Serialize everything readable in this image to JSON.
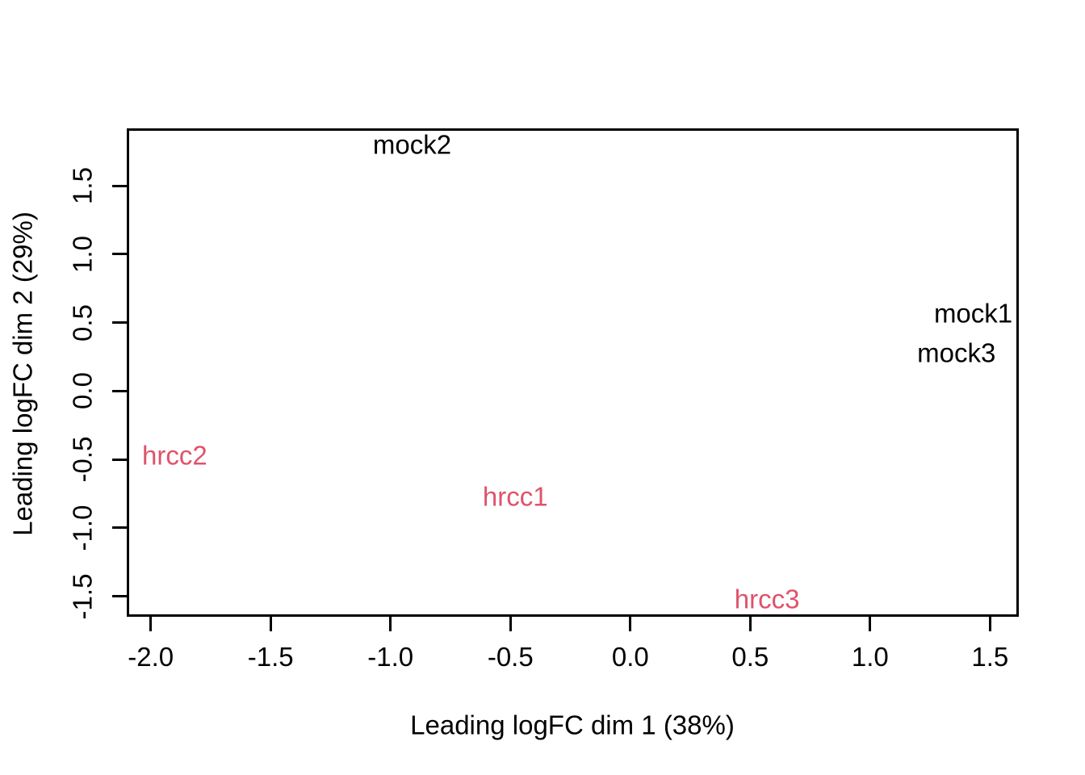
{
  "chart_data": {
    "type": "scatter",
    "subtype": "mds-text-label-plot",
    "title": "",
    "xlabel": "Leading logFC dim 1 (38%)",
    "ylabel": "Leading logFC dim 2 (29%)",
    "xlim": [
      -2.1,
      1.62
    ],
    "ylim": [
      -1.65,
      1.92
    ],
    "grid": false,
    "legend": "none",
    "x_ticks": [
      {
        "value": -2.0,
        "label": "-2.0"
      },
      {
        "value": -1.5,
        "label": "-1.5"
      },
      {
        "value": -1.0,
        "label": "-1.0"
      },
      {
        "value": -0.5,
        "label": "-0.5"
      },
      {
        "value": 0.0,
        "label": "0.0"
      },
      {
        "value": 0.5,
        "label": "0.5"
      },
      {
        "value": 1.0,
        "label": "1.0"
      },
      {
        "value": 1.5,
        "label": "1.5"
      }
    ],
    "y_ticks": [
      {
        "value": -1.5,
        "label": "-1.5"
      },
      {
        "value": -1.0,
        "label": "-1.0"
      },
      {
        "value": -0.5,
        "label": "-0.5"
      },
      {
        "value": 0.0,
        "label": "0.0"
      },
      {
        "value": 0.5,
        "label": "0.5"
      },
      {
        "value": 1.0,
        "label": "1.0"
      },
      {
        "value": 1.5,
        "label": "1.5"
      }
    ],
    "series": [
      {
        "name": "mock",
        "color": "#000000",
        "marker": "text",
        "points": [
          {
            "label": "mock1",
            "x": 1.43,
            "y": 0.57
          },
          {
            "label": "mock2",
            "x": -0.91,
            "y": 1.8
          },
          {
            "label": "mock3",
            "x": 1.36,
            "y": 0.28
          }
        ]
      },
      {
        "name": "hrcc",
        "color": "#DF536B",
        "marker": "text",
        "points": [
          {
            "label": "hrcc1",
            "x": -0.48,
            "y": -0.77
          },
          {
            "label": "hrcc2",
            "x": -1.9,
            "y": -0.47
          },
          {
            "label": "hrcc3",
            "x": 0.57,
            "y": -1.52
          }
        ]
      }
    ]
  },
  "colors": {
    "background": "#ffffff",
    "axis": "#000000",
    "mock_series": "#000000",
    "hrcc_series": "#DF536B"
  }
}
